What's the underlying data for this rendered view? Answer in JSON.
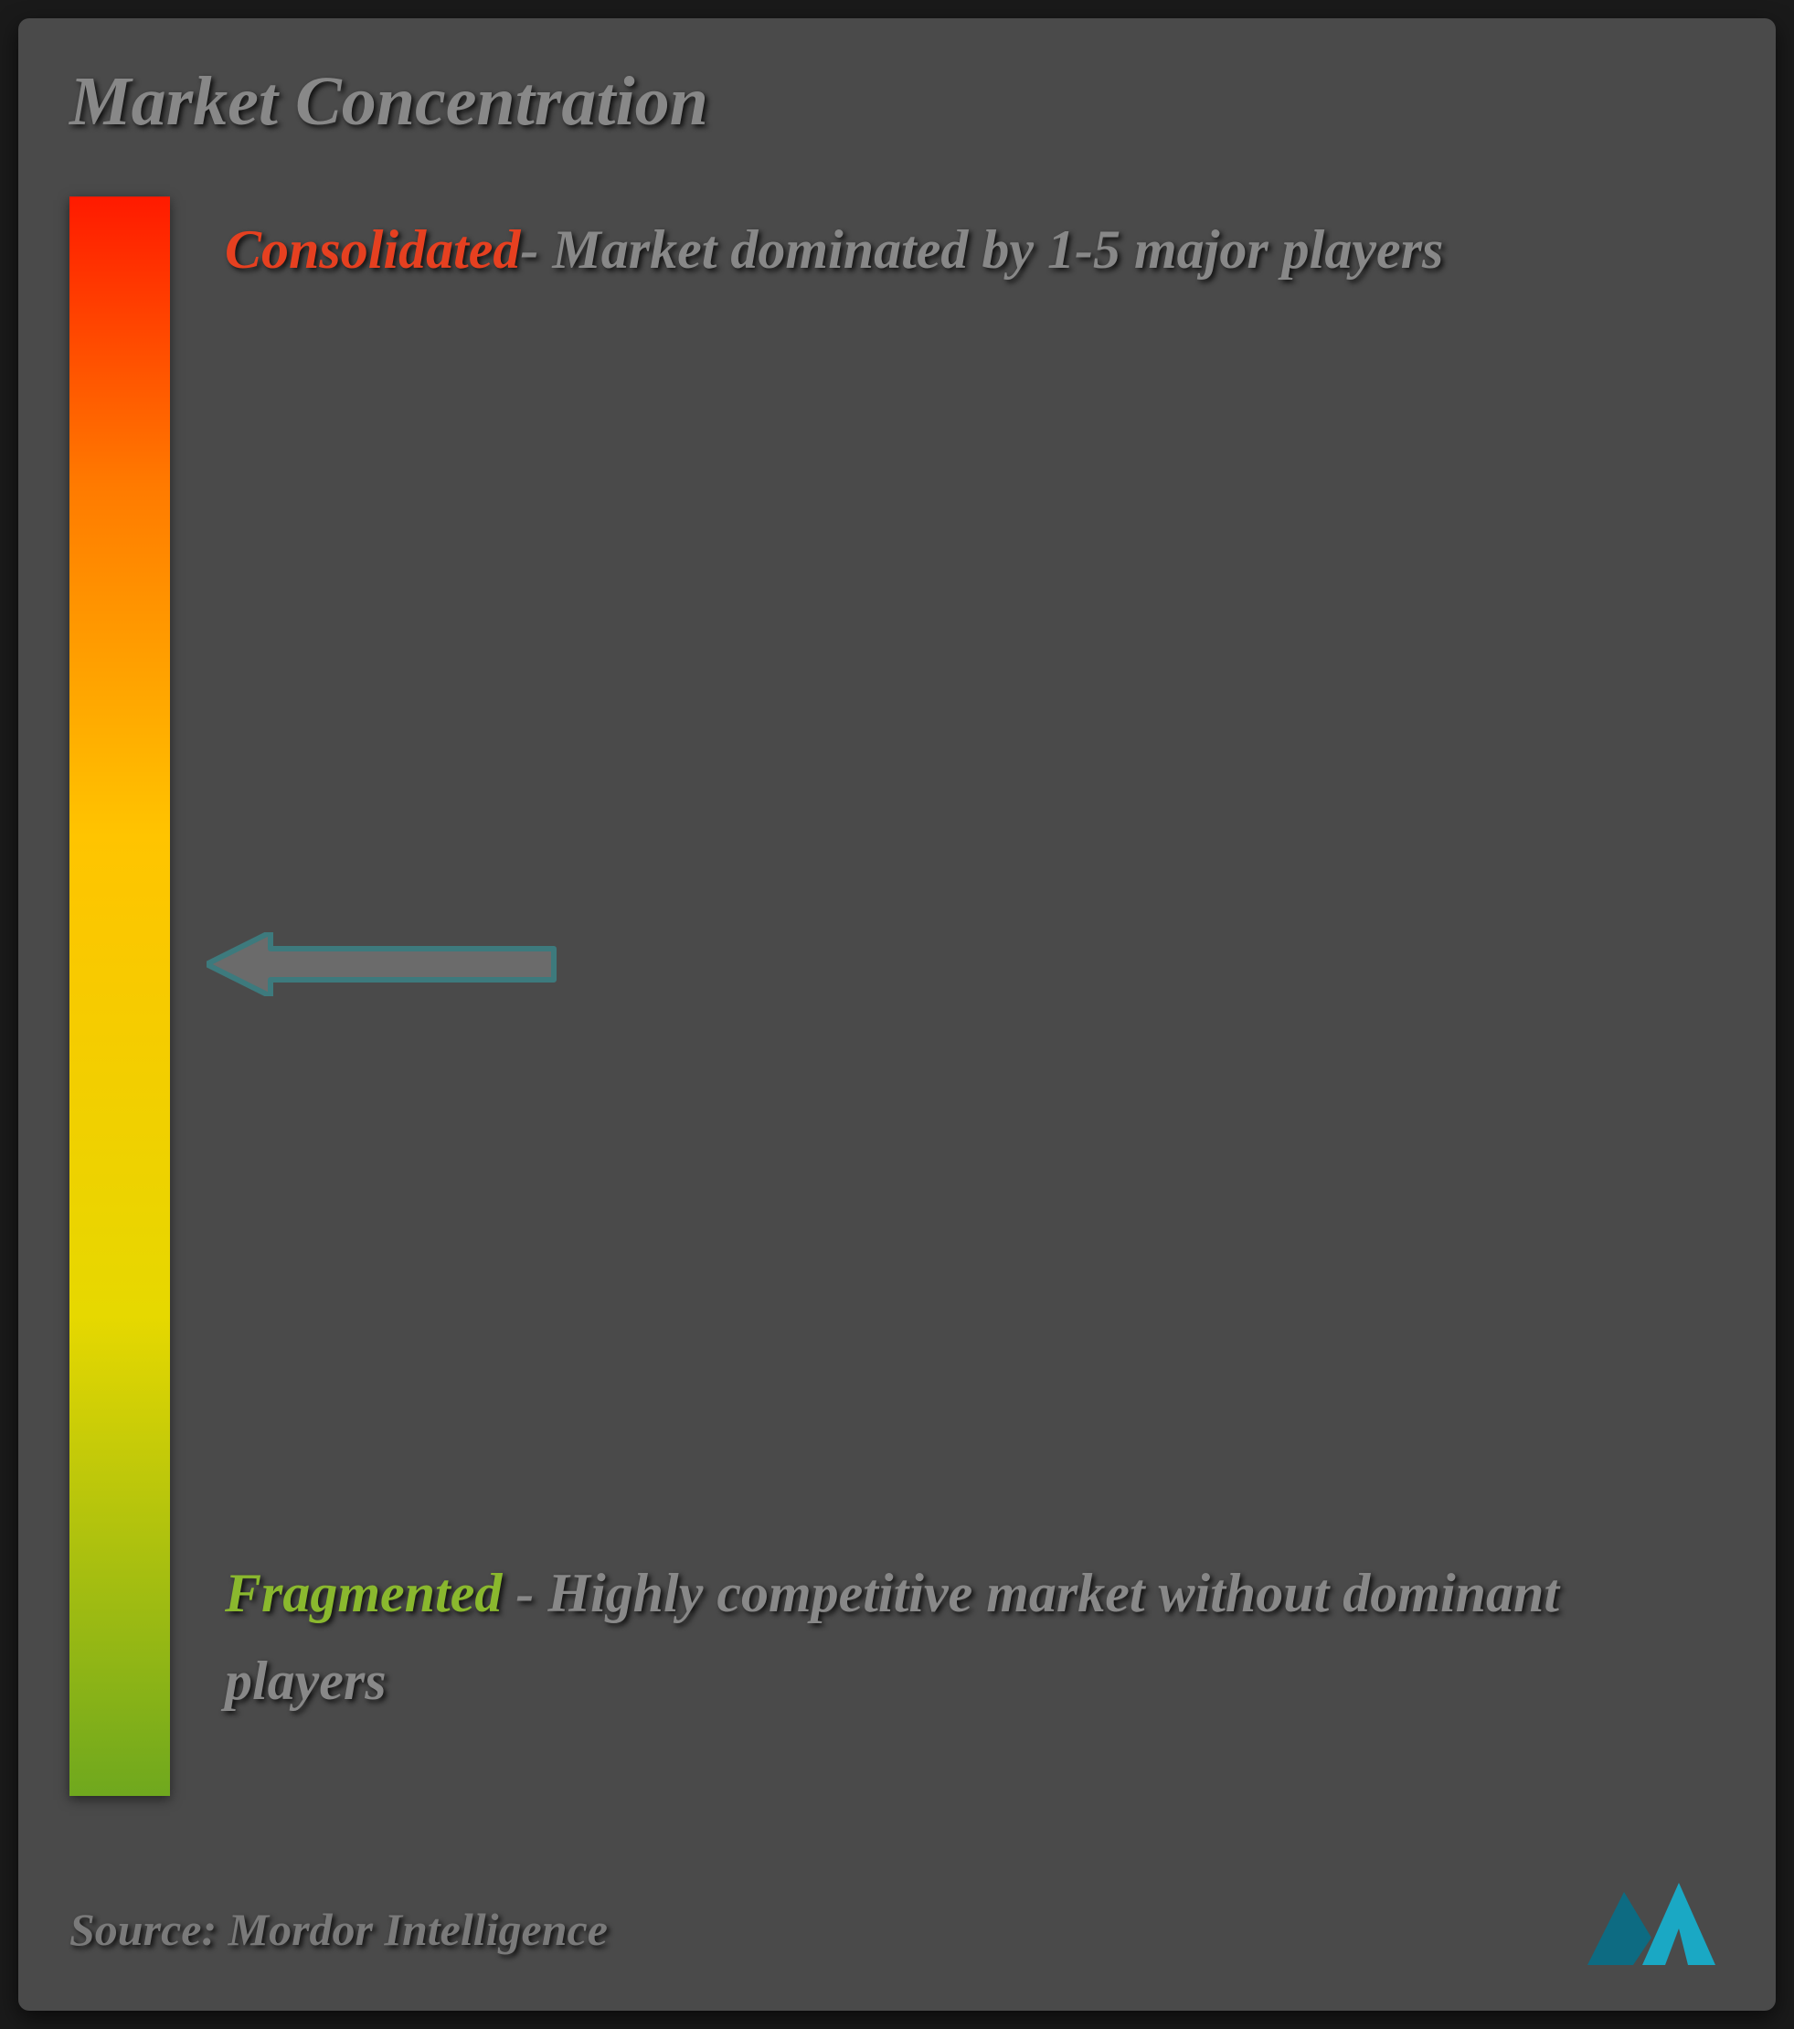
{
  "title": "Market Concentration",
  "gradient": {
    "top_color": "#ff1a00",
    "mid1_color": "#ff7a00",
    "mid2_color": "#ffc400",
    "mid3_color": "#e6d800",
    "bottom_color": "#6fa81e"
  },
  "arrow": {
    "position_percent": 48,
    "stroke_color": "#3d7a7d",
    "fill_color": "#6b6b6b",
    "stroke_width": 6
  },
  "labels": {
    "top": {
      "key": "Consolidated",
      "rest": "- Market dominated by 1-5 major players"
    },
    "bottom": {
      "key": "Fragmented",
      "rest": " - Highly competitive market without dominant players"
    }
  },
  "source_prefix": "Source: ",
  "source_name": "Mordor Intelligence",
  "logo": {
    "primary": "#1aa8c4",
    "secondary": "#0d6b82"
  }
}
